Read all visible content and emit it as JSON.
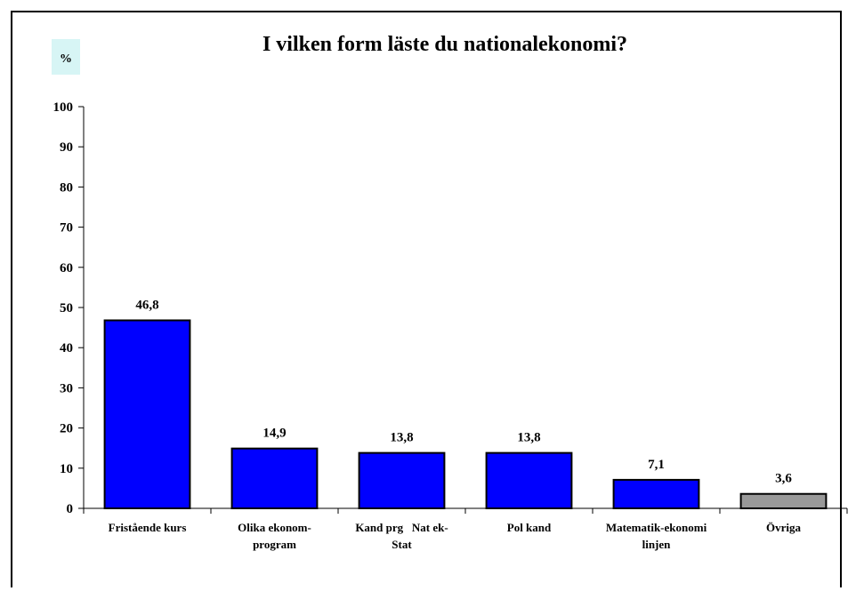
{
  "chart_data": {
    "type": "bar",
    "title": "I vilken form läste du nationalekonomi?",
    "ylabel": "%",
    "ylim": [
      0,
      100
    ],
    "yticks": [
      0,
      10,
      20,
      30,
      40,
      50,
      60,
      70,
      80,
      90,
      100
    ],
    "categories": [
      [
        "Fristående kurs"
      ],
      [
        "Olika ekonom-",
        "program"
      ],
      [
        "Kand prg   Nat ek-",
        "Stat"
      ],
      [
        "Pol kand"
      ],
      [
        "Matematik-ekonomi",
        "linjen"
      ],
      [
        "Övriga"
      ]
    ],
    "values": [
      46.8,
      14.9,
      13.8,
      13.8,
      7.1,
      3.6
    ],
    "value_labels": [
      "46,8",
      "14,9",
      "13,8",
      "13,8",
      "7,1",
      "3,6"
    ],
    "colors": [
      "#0000ff",
      "#0000ff",
      "#0000ff",
      "#0000ff",
      "#0000ff",
      "#999999"
    ],
    "grid": false,
    "legend": "none"
  }
}
